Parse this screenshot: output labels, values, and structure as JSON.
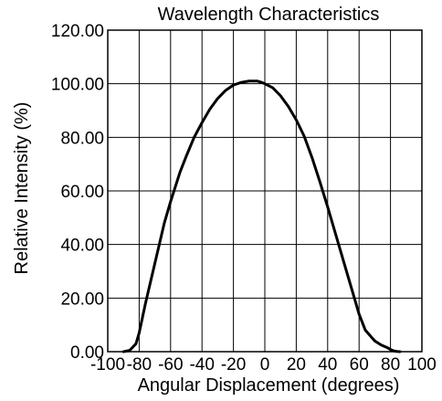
{
  "chart_data": {
    "type": "line",
    "title": "Wavelength Characteristics",
    "xlabel": "Angular Displacement (degrees)",
    "ylabel": "Relative Intensity (%)",
    "xlim": [
      -100,
      100
    ],
    "ylim": [
      0,
      120
    ],
    "grid": true,
    "x_ticks": [
      -100,
      -80,
      -60,
      -40,
      -20,
      0,
      20,
      40,
      60,
      80,
      100
    ],
    "x_tick_labels": [
      "-100",
      "-80",
      "-60",
      "-40",
      "-20",
      "0",
      "20",
      "40",
      "60",
      "80",
      "100"
    ],
    "y_ticks": [
      0,
      20,
      40,
      60,
      80,
      100,
      120
    ],
    "y_tick_labels": [
      "0.00",
      "20.00",
      "40.00",
      "60.00",
      "80.00",
      "100.00",
      "120.00"
    ],
    "series": [
      {
        "x": [
          -90,
          -86,
          -82,
          -80,
          -76,
          -70,
          -64,
          -60,
          -54,
          -50,
          -45,
          -40,
          -35,
          -30,
          -25,
          -20,
          -15,
          -10,
          -5,
          -2,
          0,
          5,
          10,
          15,
          20,
          25,
          30,
          35,
          40,
          45,
          50,
          55,
          60,
          64,
          70,
          74,
          78,
          80,
          82,
          84,
          86
        ],
        "y": [
          0,
          0.5,
          3,
          7,
          18,
          33,
          48,
          56,
          67,
          73,
          80,
          85.5,
          90.5,
          94.5,
          97.5,
          99.5,
          100.5,
          101,
          101,
          100.5,
          100,
          98.5,
          95.5,
          91.5,
          86.5,
          80.5,
          72.5,
          63.5,
          54,
          44,
          34,
          24,
          14,
          8,
          4,
          2.5,
          1.5,
          0.8,
          0.3,
          0.1,
          0
        ]
      }
    ]
  }
}
